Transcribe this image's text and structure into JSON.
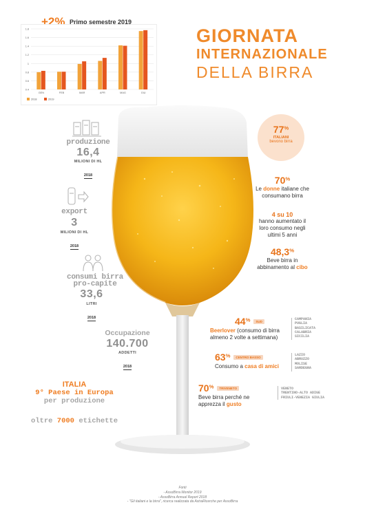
{
  "header": {
    "growth": "+2%",
    "period": "Primo semestre 2019",
    "title_line1": "GIORNATA",
    "title_line2": "INTERNAZIONALE",
    "title_line3": "DELLA BIRRA"
  },
  "chart_data": {
    "type": "bar",
    "categories": [
      "GEN",
      "FEB",
      "MAR",
      "APR",
      "MAG",
      "GIU"
    ],
    "series": [
      {
        "name": "2018",
        "values": [
          0.8,
          0.81,
          0.99,
          1.06,
          1.42,
          1.75
        ],
        "color": "#f2a33a"
      },
      {
        "name": "2019",
        "values": [
          0.83,
          0.81,
          1.05,
          1.13,
          1.41,
          1.77
        ],
        "color": "#e5561f"
      }
    ],
    "ylim": [
      0.4,
      1.8
    ],
    "yticks": [
      "0.4",
      "0.6",
      "0.8",
      "1",
      "1.2",
      "1.4",
      "1.6",
      "1.8"
    ],
    "legend": [
      "2018",
      "2019"
    ],
    "legend_position": "bottom-left",
    "grid": true
  },
  "left": {
    "production": {
      "label": "produzione",
      "value": "16,4",
      "unit": "MILIONI DI HL",
      "year": "2018"
    },
    "export": {
      "label": "export",
      "value": "3",
      "unit": "MILIONI DI HL",
      "year": "2018"
    },
    "consumption": {
      "label_line1": "consumi birra",
      "label_line2": "pro-capite",
      "value": "33,6",
      "unit": "LITRI",
      "year": "2018"
    },
    "employment": {
      "label": "Occupazione",
      "value": "140.700",
      "unit": "ADDETTI",
      "year": "2018"
    }
  },
  "italia": {
    "title": "ITALIA",
    "line1": "9° Paese in Europa",
    "line2": "per produzione",
    "labels_prefix": "oltre",
    "labels_number": "7000",
    "labels_suffix": "etichette"
  },
  "right": {
    "italiani": {
      "pct": "77",
      "sup": "%",
      "label": "ITALIANI",
      "sub": "bevono birra"
    },
    "donne": {
      "pct": "70",
      "sup": "%",
      "text_a": "Le",
      "highlight": "donne",
      "text_b": "italiane che",
      "text_c": "consumano birra"
    },
    "aumento": {
      "value": "4 su 10",
      "line1": "hanno aumentato il",
      "line2": "loro consumo negli",
      "line3": "ultimi 5 anni"
    },
    "cibo": {
      "pct": "48,3",
      "sup": "%",
      "line1": "Beve birra in",
      "line2_a": "abbinamento al",
      "highlight": "cibo"
    },
    "sud": {
      "pct": "44",
      "sup": "%",
      "badge": "SUD",
      "highlight": "Beerlover",
      "line1_rest": "(consumo di birra",
      "line2": "almeno 2 volte a settimana)",
      "regions": [
        "CAMPANIA",
        "PUGLIA",
        "BASILICATA",
        "CALABRIA",
        "SICILIA"
      ]
    },
    "centro": {
      "pct": "63",
      "sup": "%",
      "badge": "CENTRO BASSO",
      "line_a": "Consumo a",
      "highlight": "casa di amici",
      "regions": [
        "LAZIO",
        "ABRUZZO",
        "MOLISE",
        "SARDEGNA"
      ]
    },
    "triveneto": {
      "pct": "70",
      "sup": "%",
      "badge": "TRIVENETO",
      "line1": "Beve birra perché ne",
      "line2_a": "apprezza il",
      "highlight": "gusto",
      "regions": [
        "VENETO",
        "TRENTINO-ALTO ADIGE",
        "FRIULI-VENEZIA GIULIA"
      ]
    }
  },
  "sources": {
    "title": "Fonti",
    "line1": "- AssoBirra Monitor 2019",
    "line2": "- AssoBirra Annual Report 2018",
    "line3": "- \"Gli italiani e la birra\", ricerca realizzata da AstraRicerche per AssoBirra"
  },
  "colors": {
    "accent": "#ef7d22",
    "beer": "#f2b418",
    "foam": "#f2f2f2"
  }
}
